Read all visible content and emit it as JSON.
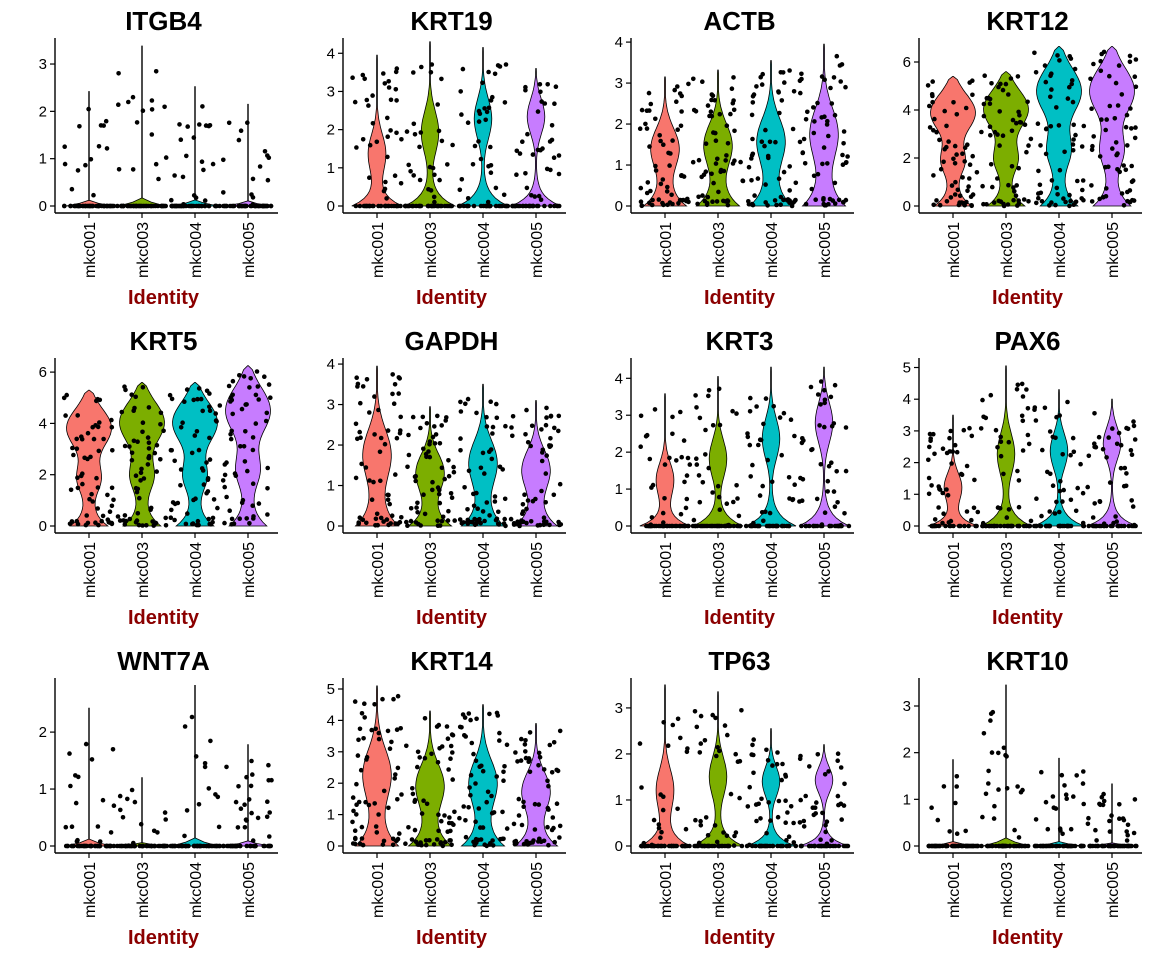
{
  "figure": {
    "series_colors": {
      "mkc001": "#f8766d",
      "mkc003": "#7cae00",
      "mkc004": "#00bfc4",
      "mkc005": "#c77cff"
    }
  },
  "chart_data": [
    {
      "type": "violin",
      "title": "ITGB4",
      "xlabel": "Identity",
      "ylabel": "",
      "categories": [
        "mkc001",
        "mkc003",
        "mkc004",
        "mkc005"
      ],
      "ylim": [
        0,
        3.55
      ],
      "yticks": [
        0,
        1,
        2,
        3
      ],
      "max": [
        2.42,
        3.38,
        2.52,
        2.15
      ],
      "shape": "zero"
    },
    {
      "type": "violin",
      "title": "KRT19",
      "xlabel": "Identity",
      "ylabel": "",
      "categories": [
        "mkc001",
        "mkc003",
        "mkc004",
        "mkc005"
      ],
      "ylim": [
        0,
        4.4
      ],
      "yticks": [
        0,
        1,
        2,
        3,
        4
      ],
      "max": [
        3.95,
        4.3,
        4.15,
        3.6
      ],
      "shape": "low"
    },
    {
      "type": "violin",
      "title": "ACTB",
      "xlabel": "Identity",
      "ylabel": "",
      "categories": [
        "mkc001",
        "mkc003",
        "mkc004",
        "mkc005"
      ],
      "ylim": [
        0,
        4.1
      ],
      "yticks": [
        0,
        1,
        2,
        3,
        4
      ],
      "max": [
        3.15,
        3.32,
        3.55,
        3.95
      ],
      "shape": "mid"
    },
    {
      "type": "violin",
      "title": "KRT12",
      "xlabel": "Identity",
      "ylabel": "",
      "categories": [
        "mkc001",
        "mkc003",
        "mkc004",
        "mkc005"
      ],
      "ylim": [
        0,
        7.0
      ],
      "yticks": [
        0,
        2,
        4,
        6
      ],
      "max": [
        5.4,
        5.6,
        6.65,
        6.65
      ],
      "shape": "high"
    },
    {
      "type": "violin",
      "title": "KRT5",
      "xlabel": "Identity",
      "ylabel": "",
      "categories": [
        "mkc001",
        "mkc003",
        "mkc004",
        "mkc005"
      ],
      "ylim": [
        0,
        6.55
      ],
      "yticks": [
        0,
        2,
        4,
        6
      ],
      "max": [
        5.3,
        5.6,
        5.6,
        6.25
      ],
      "shape": "high"
    },
    {
      "type": "violin",
      "title": "GAPDH",
      "xlabel": "Identity",
      "ylabel": "",
      "categories": [
        "mkc001",
        "mkc003",
        "mkc004",
        "mkc005"
      ],
      "ylim": [
        0,
        4.15
      ],
      "yticks": [
        0,
        1,
        2,
        3,
        4
      ],
      "max": [
        3.95,
        2.95,
        3.5,
        3.1
      ],
      "shape": "mid"
    },
    {
      "type": "violin",
      "title": "KRT3",
      "xlabel": "Identity",
      "ylabel": "",
      "categories": [
        "mkc001",
        "mkc003",
        "mkc004",
        "mkc005"
      ],
      "ylim": [
        0,
        4.55
      ],
      "yticks": [
        0,
        1,
        2,
        3,
        4
      ],
      "max": [
        3.58,
        4.05,
        4.3,
        4.3
      ],
      "shape": "low"
    },
    {
      "type": "violin",
      "title": "PAX6",
      "xlabel": "Identity",
      "ylabel": "",
      "categories": [
        "mkc001",
        "mkc003",
        "mkc004",
        "mkc005"
      ],
      "ylim": [
        0,
        5.3
      ],
      "yticks": [
        0,
        1,
        2,
        3,
        4,
        5
      ],
      "max": [
        3.5,
        5.05,
        4.3,
        4.0
      ],
      "shape": "low"
    },
    {
      "type": "violin",
      "title": "WNT7A",
      "xlabel": "Identity",
      "ylabel": "",
      "categories": [
        "mkc001",
        "mkc003",
        "mkc004",
        "mkc005"
      ],
      "ylim": [
        0,
        2.95
      ],
      "yticks": [
        0,
        1,
        2
      ],
      "max": [
        2.42,
        1.2,
        2.82,
        1.78
      ],
      "shape": "zero"
    },
    {
      "type": "violin",
      "title": "KRT14",
      "xlabel": "Identity",
      "ylabel": "",
      "categories": [
        "mkc001",
        "mkc003",
        "mkc004",
        "mkc005"
      ],
      "ylim": [
        0,
        5.35
      ],
      "yticks": [
        0,
        1,
        2,
        3,
        4,
        5
      ],
      "max": [
        5.1,
        4.3,
        4.5,
        3.9
      ],
      "shape": "mid"
    },
    {
      "type": "violin",
      "title": "TP63",
      "xlabel": "Identity",
      "ylabel": "",
      "categories": [
        "mkc001",
        "mkc003",
        "mkc004",
        "mkc005"
      ],
      "ylim": [
        0,
        3.65
      ],
      "yticks": [
        0,
        1,
        2,
        3
      ],
      "max": [
        3.5,
        3.35,
        2.55,
        2.2
      ],
      "shape": "low"
    },
    {
      "type": "violin",
      "title": "KRT10",
      "xlabel": "Identity",
      "ylabel": "",
      "categories": [
        "mkc001",
        "mkc003",
        "mkc004",
        "mkc005"
      ],
      "ylim": [
        0,
        3.6
      ],
      "yticks": [
        0,
        1,
        2,
        3
      ],
      "max": [
        1.85,
        3.45,
        1.88,
        1.33
      ],
      "shape": "zero"
    }
  ]
}
